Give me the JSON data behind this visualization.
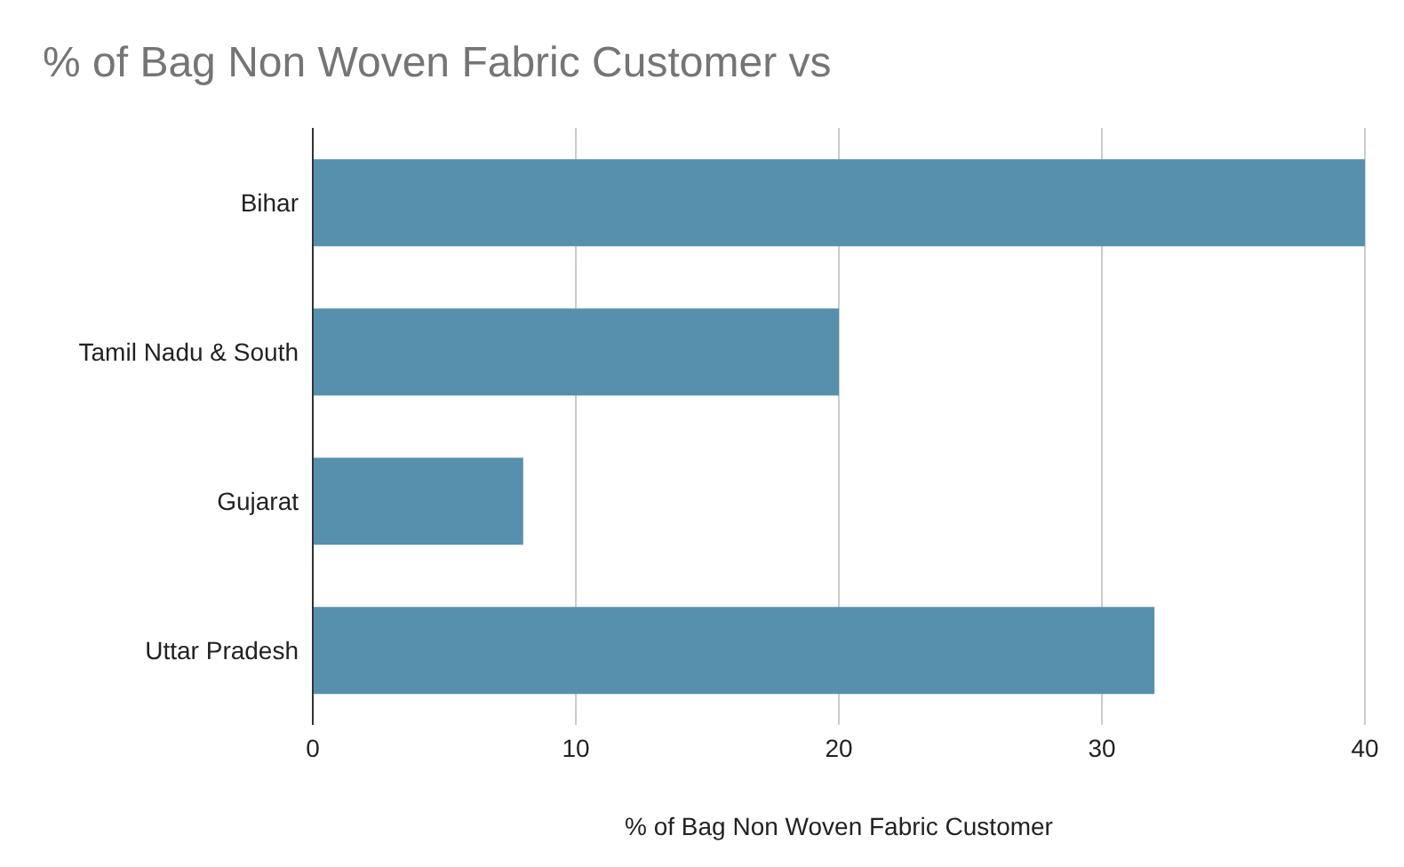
{
  "chart_data": {
    "type": "bar",
    "orientation": "horizontal",
    "title": "% of Bag Non Woven Fabric Customer vs",
    "xlabel": "% of Bag Non Woven Fabric Customer",
    "categories": [
      "Bihar",
      "Tamil Nadu & South",
      "Gujarat",
      "Uttar Pradesh"
    ],
    "values": [
      40,
      20,
      8,
      32
    ],
    "color": "#5790ad",
    "xlim": [
      0,
      40
    ],
    "xticks": [
      0,
      10,
      20,
      30,
      40
    ],
    "grid": "x",
    "legend": false
  }
}
